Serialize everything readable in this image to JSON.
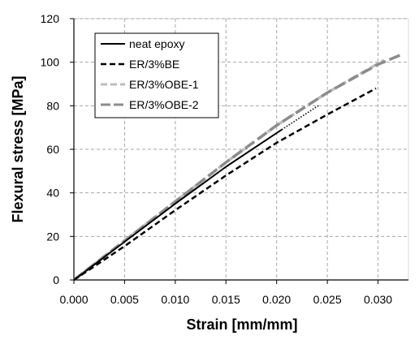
{
  "chart_data": {
    "type": "line",
    "title": "",
    "xlabel": "Strain [mm/mm]",
    "ylabel": "Flexural stress [MPa]",
    "xlim": [
      0.0,
      0.033
    ],
    "ylim": [
      0,
      120
    ],
    "xticks": [
      "0.000",
      "0.005",
      "0.010",
      "0.015",
      "0.020",
      "0.025",
      "0.030"
    ],
    "xtick_values": [
      0.0,
      0.005,
      0.01,
      0.015,
      0.02,
      0.025,
      0.03
    ],
    "yticks": [
      "0",
      "20",
      "40",
      "60",
      "80",
      "100",
      "120"
    ],
    "ytick_values": [
      0,
      20,
      40,
      60,
      80,
      100,
      120
    ],
    "grid": true,
    "legend_position": "top-left",
    "series": [
      {
        "name": "neat epoxy",
        "color": "#000000",
        "style": "solid",
        "x": [
          0.0,
          0.005,
          0.01,
          0.015,
          0.0205
        ],
        "y": [
          0,
          17.5,
          35,
          52,
          69
        ],
        "continuation": {
          "style": "dotted",
          "x": [
            0.0205,
            0.0241
          ],
          "y": [
            69,
            80
          ]
        }
      },
      {
        "name": "ER/3%BE",
        "color": "#000000",
        "style": "dashed",
        "x": [
          0.0,
          0.005,
          0.01,
          0.015,
          0.02,
          0.025,
          0.0298
        ],
        "y": [
          0,
          15.5,
          32,
          48,
          63,
          76,
          88
        ]
      },
      {
        "name": "ER/3%OBE-1",
        "color": "#bdbdbd",
        "style": "dashed",
        "x": [
          0.0,
          0.005,
          0.01,
          0.015,
          0.02,
          0.025,
          0.0306
        ],
        "y": [
          0,
          18,
          36,
          54,
          71,
          86,
          101
        ]
      },
      {
        "name": "ER/3%OBE-2",
        "color": "#8c8c8c",
        "style": "dashed",
        "x": [
          0.0,
          0.005,
          0.01,
          0.015,
          0.02,
          0.025,
          0.03,
          0.0323
        ],
        "y": [
          0,
          18,
          36,
          54,
          71,
          86,
          99,
          103.5
        ]
      }
    ]
  }
}
